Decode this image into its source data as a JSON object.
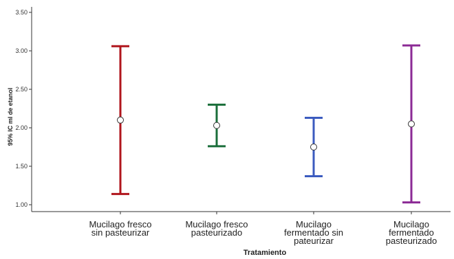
{
  "chart_data": {
    "type": "errorbar",
    "xlabel": "Tratamiento",
    "ylabel": "95% IC ml de etanol",
    "ylim": [
      0.95,
      3.55
    ],
    "yticks": [
      "1.00",
      "1.50",
      "2.00",
      "2.50",
      "3.00",
      "3.50"
    ],
    "grid": false,
    "categories": [
      [
        "Mucilago fresco",
        "sin pasteurizar"
      ],
      [
        "Mucilago fresco",
        "pasteurizado"
      ],
      [
        "Mucilago",
        "fermentado sin",
        "pateurizar"
      ],
      [
        "Mucilago",
        "fermentado",
        "pasteurizado"
      ]
    ],
    "series": [
      {
        "mean": 2.1,
        "lower": 1.14,
        "upper": 3.06,
        "color": "#b0151c"
      },
      {
        "mean": 2.03,
        "lower": 1.76,
        "upper": 2.3,
        "color": "#1a6e3a"
      },
      {
        "mean": 1.75,
        "lower": 1.37,
        "upper": 2.13,
        "color": "#3b5bbf"
      },
      {
        "mean": 2.05,
        "lower": 1.03,
        "upper": 3.07,
        "color": "#8b2a95"
      }
    ]
  }
}
